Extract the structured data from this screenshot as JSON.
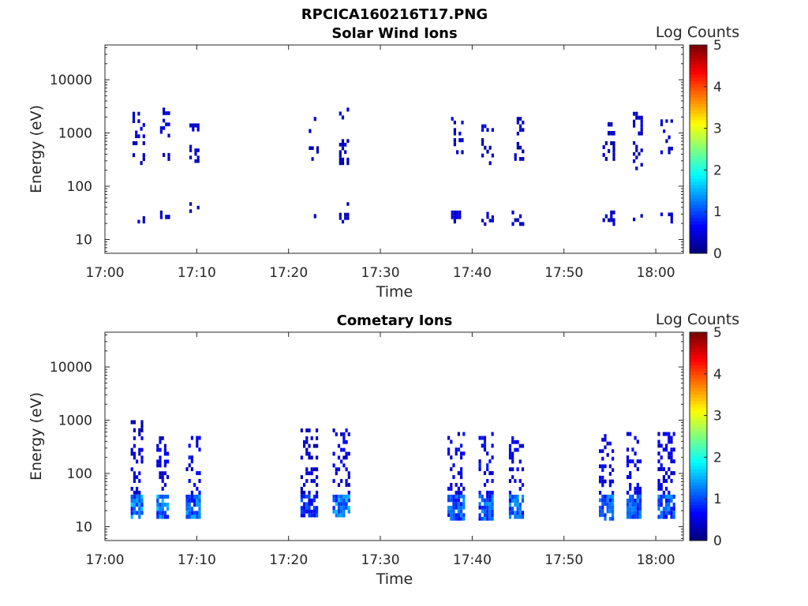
{
  "figure_title": "RPCICA160216T17.PNG",
  "colorscale": [
    "#00007f",
    "#0000ff",
    "#007fff",
    "#00ffff",
    "#7fff7f",
    "#ffff00",
    "#ff7f00",
    "#ff0000",
    "#7f0000"
  ],
  "chart_data": [
    {
      "type": "heatmap",
      "title": "Solar Wind Ions",
      "xlabel": "Time",
      "ylabel": "Energy (eV)",
      "x_ticks": [
        "17:00",
        "17:10",
        "17:20",
        "17:30",
        "17:40",
        "17:50",
        "18:00"
      ],
      "y_ticks": [
        "10",
        "100",
        "1000",
        "10000"
      ],
      "xlim_minutes": [
        0,
        63
      ],
      "ylim_eV": [
        5.5,
        45000
      ],
      "y_scale": "log",
      "colorbar": {
        "label": "Log Counts",
        "range": [
          0,
          5
        ],
        "ticks": [
          "0",
          "1",
          "2",
          "3",
          "4",
          "5"
        ]
      },
      "scans": [
        {
          "start_min": 3.0,
          "end_min": 4.3,
          "bands": [
            {
              "lo": 20,
              "hi": 32,
              "level": 0.35
            },
            {
              "lo": 250,
              "hi": 700,
              "level": 0.3
            },
            {
              "lo": 800,
              "hi": 2500,
              "level": 0.4
            }
          ]
        },
        {
          "start_min": 6.0,
          "end_min": 7.0,
          "bands": [
            {
              "lo": 20,
              "hi": 35,
              "level": 0.35
            },
            {
              "lo": 300,
              "hi": 700,
              "level": 0.3
            },
            {
              "lo": 700,
              "hi": 3000,
              "level": 0.4
            }
          ]
        },
        {
          "start_min": 9.2,
          "end_min": 10.2,
          "bands": [
            {
              "lo": 20,
              "hi": 50,
              "level": 0.35
            },
            {
              "lo": 200,
              "hi": 700,
              "level": 0.3
            },
            {
              "lo": 900,
              "hi": 1800,
              "level": 0.4
            }
          ]
        },
        {
          "start_min": 22.2,
          "end_min": 23.3,
          "bands": [
            {
              "lo": 25,
              "hi": 30,
              "level": 0.3
            },
            {
              "lo": 300,
              "hi": 900,
              "level": 0.3
            },
            {
              "lo": 1000,
              "hi": 2000,
              "level": 0.35
            }
          ]
        },
        {
          "start_min": 25.5,
          "end_min": 26.5,
          "bands": [
            {
              "lo": 20,
              "hi": 50,
              "level": 0.35
            },
            {
              "lo": 250,
              "hi": 900,
              "level": 0.3
            },
            {
              "lo": 900,
              "hi": 3000,
              "level": 0.4
            }
          ]
        },
        {
          "start_min": 37.7,
          "end_min": 39.2,
          "bands": [
            {
              "lo": 20,
              "hi": 35,
              "level": 0.4
            },
            {
              "lo": 400,
              "hi": 800,
              "level": 0.35
            },
            {
              "lo": 900,
              "hi": 2000,
              "level": 0.4
            }
          ]
        },
        {
          "start_min": 41.0,
          "end_min": 42.3,
          "bands": [
            {
              "lo": 18,
              "hi": 33,
              "level": 0.35
            },
            {
              "lo": 250,
              "hi": 800,
              "level": 0.3
            },
            {
              "lo": 900,
              "hi": 2000,
              "level": 0.4
            }
          ]
        },
        {
          "start_min": 44.3,
          "end_min": 45.7,
          "bands": [
            {
              "lo": 18,
              "hi": 35,
              "level": 0.35
            },
            {
              "lo": 300,
              "hi": 800,
              "level": 0.3
            },
            {
              "lo": 900,
              "hi": 2000,
              "level": 0.4
            }
          ]
        },
        {
          "start_min": 54.2,
          "end_min": 55.6,
          "bands": [
            {
              "lo": 18,
              "hi": 35,
              "level": 0.35
            },
            {
              "lo": 300,
              "hi": 700,
              "level": 0.3
            },
            {
              "lo": 900,
              "hi": 1600,
              "level": 0.4
            }
          ]
        },
        {
          "start_min": 57.5,
          "end_min": 58.5,
          "bands": [
            {
              "lo": 22,
              "hi": 30,
              "level": 0.35
            },
            {
              "lo": 200,
              "hi": 700,
              "level": 0.3
            },
            {
              "lo": 900,
              "hi": 2500,
              "level": 0.4
            }
          ]
        },
        {
          "start_min": 60.5,
          "end_min": 62.0,
          "bands": [
            {
              "lo": 20,
              "hi": 32,
              "level": 0.35
            },
            {
              "lo": 400,
              "hi": 900,
              "level": 0.3
            },
            {
              "lo": 1000,
              "hi": 1800,
              "level": 0.4
            }
          ]
        }
      ]
    },
    {
      "type": "heatmap",
      "title": "Cometary Ions",
      "xlabel": "Time",
      "ylabel": "Energy (eV)",
      "x_ticks": [
        "17:00",
        "17:10",
        "17:20",
        "17:30",
        "17:40",
        "17:50",
        "18:00"
      ],
      "y_ticks": [
        "10",
        "100",
        "1000",
        "10000"
      ],
      "xlim_minutes": [
        0,
        63
      ],
      "ylim_eV": [
        5.5,
        45000
      ],
      "y_scale": "log",
      "colorbar": {
        "label": "Log Counts",
        "range": [
          0,
          5
        ],
        "ticks": [
          "0",
          "1",
          "2",
          "3",
          "4",
          "5"
        ]
      },
      "scans": [
        {
          "start_min": 2.8,
          "end_min": 4.2,
          "bands": [
            {
              "lo": 14,
              "hi": 40,
              "level": 1.2
            },
            {
              "lo": 40,
              "hi": 500,
              "level": 0.45
            },
            {
              "lo": 500,
              "hi": 1000,
              "level": 0.25
            }
          ]
        },
        {
          "start_min": 5.6,
          "end_min": 7.0,
          "bands": [
            {
              "lo": 14,
              "hi": 40,
              "level": 1.2
            },
            {
              "lo": 40,
              "hi": 500,
              "level": 0.45
            }
          ]
        },
        {
          "start_min": 8.8,
          "end_min": 10.4,
          "bands": [
            {
              "lo": 14,
              "hi": 40,
              "level": 1.1
            },
            {
              "lo": 40,
              "hi": 600,
              "level": 0.55
            }
          ]
        },
        {
          "start_min": 21.3,
          "end_min": 23.2,
          "bands": [
            {
              "lo": 15,
              "hi": 40,
              "level": 0.8
            },
            {
              "lo": 40,
              "hi": 700,
              "level": 0.35
            }
          ]
        },
        {
          "start_min": 24.8,
          "end_min": 26.7,
          "bands": [
            {
              "lo": 15,
              "hi": 40,
              "level": 1.2
            },
            {
              "lo": 40,
              "hi": 700,
              "level": 0.5
            }
          ]
        },
        {
          "start_min": 37.3,
          "end_min": 39.1,
          "bands": [
            {
              "lo": 13,
              "hi": 40,
              "level": 1.0
            },
            {
              "lo": 40,
              "hi": 600,
              "level": 0.55
            }
          ]
        },
        {
          "start_min": 40.7,
          "end_min": 42.4,
          "bands": [
            {
              "lo": 13,
              "hi": 40,
              "level": 1.0
            },
            {
              "lo": 40,
              "hi": 600,
              "level": 0.55
            }
          ]
        },
        {
          "start_min": 44.0,
          "end_min": 45.7,
          "bands": [
            {
              "lo": 14,
              "hi": 40,
              "level": 1.0
            },
            {
              "lo": 40,
              "hi": 500,
              "level": 0.5
            }
          ]
        },
        {
          "start_min": 53.8,
          "end_min": 55.5,
          "bands": [
            {
              "lo": 13,
              "hi": 40,
              "level": 1.0
            },
            {
              "lo": 40,
              "hi": 550,
              "level": 0.5
            }
          ]
        },
        {
          "start_min": 56.8,
          "end_min": 58.5,
          "bands": [
            {
              "lo": 14,
              "hi": 40,
              "level": 1.0
            },
            {
              "lo": 40,
              "hi": 600,
              "level": 0.5
            }
          ]
        },
        {
          "start_min": 60.2,
          "end_min": 62.0,
          "bands": [
            {
              "lo": 14,
              "hi": 40,
              "level": 1.0
            },
            {
              "lo": 40,
              "hi": 600,
              "level": 0.5
            }
          ]
        }
      ]
    }
  ]
}
